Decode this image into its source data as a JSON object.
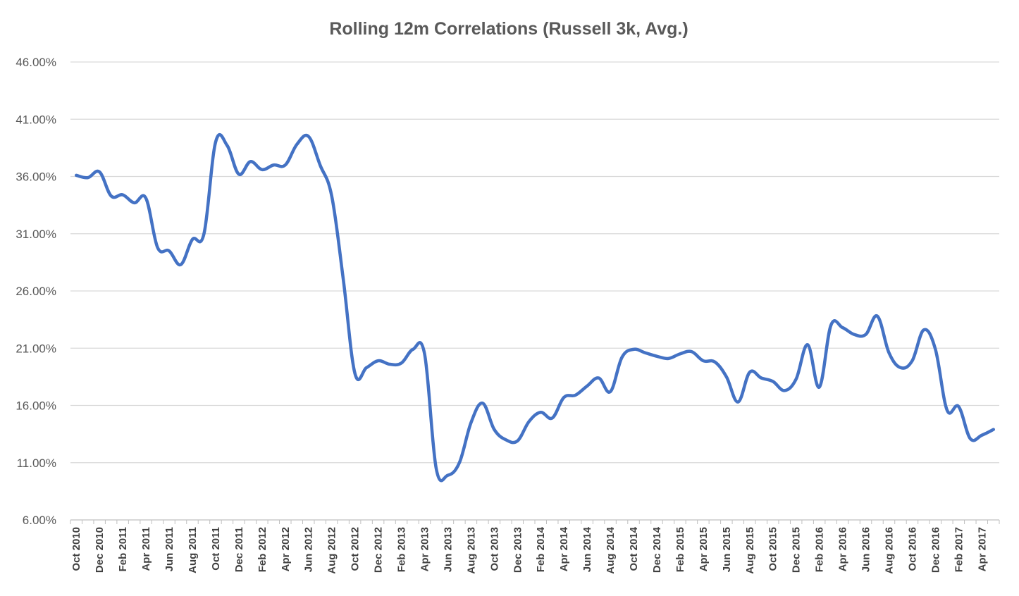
{
  "chart_data": {
    "type": "line",
    "title": "Rolling 12m Correlations (Russell 3k, Avg.)",
    "xlabel": "",
    "ylabel": "",
    "ylim": [
      6,
      46
    ],
    "yticks": [
      "6.00%",
      "11.00%",
      "16.00%",
      "21.00%",
      "26.00%",
      "31.00%",
      "36.00%",
      "41.00%",
      "46.00%"
    ],
    "grid": true,
    "legend": "none",
    "categories": [
      "Oct 2010",
      "Nov 2010",
      "Dec 2010",
      "Jan 2011",
      "Feb 2011",
      "Mar 2011",
      "Apr 2011",
      "May 2011",
      "Jun 2011",
      "Jul 2011",
      "Aug 2011",
      "Sep 2011",
      "Oct 2011",
      "Nov 2011",
      "Dec 2011",
      "Jan 2012",
      "Feb 2012",
      "Mar 2012",
      "Apr 2012",
      "May 2012",
      "Jun 2012",
      "Jul 2012",
      "Aug 2012",
      "Sep 2012",
      "Oct 2012",
      "Nov 2012",
      "Dec 2012",
      "Jan 2013",
      "Feb 2013",
      "Mar 2013",
      "Apr 2013",
      "May 2013",
      "Jun 2013",
      "Jul 2013",
      "Aug 2013",
      "Sep 2013",
      "Oct 2013",
      "Nov 2013",
      "Dec 2013",
      "Jan 2014",
      "Feb 2014",
      "Mar 2014",
      "Apr 2014",
      "May 2014",
      "Jun 2014",
      "Jul 2014",
      "Aug 2014",
      "Sep 2014",
      "Oct 2014",
      "Nov 2014",
      "Dec 2014",
      "Jan 2015",
      "Feb 2015",
      "Mar 2015",
      "Apr 2015",
      "May 2015",
      "Jun 2015",
      "Jul 2015",
      "Aug 2015",
      "Sep 2015",
      "Oct 2015",
      "Nov 2015",
      "Dec 2015",
      "Jan 2016",
      "Feb 2016",
      "Mar 2016",
      "Apr 2016",
      "May 2016",
      "Jun 2016",
      "Jul 2016",
      "Aug 2016",
      "Sep 2016",
      "Oct 2016",
      "Nov 2016",
      "Dec 2016",
      "Jan 2017",
      "Feb 2017",
      "Mar 2017",
      "Apr 2017",
      "May 2017"
    ],
    "tick_labels": [
      "Oct 2010",
      "Dec 2010",
      "Feb 2011",
      "Apr 2011",
      "Jun 2011",
      "Aug 2011",
      "Oct 2011",
      "Dec 2011",
      "Feb 2012",
      "Apr 2012",
      "Jun 2012",
      "Aug 2012",
      "Oct 2012",
      "Dec 2012",
      "Feb 2013",
      "Apr 2013",
      "Jun 2013",
      "Aug 2013",
      "Oct 2013",
      "Dec 2013",
      "Feb 2014",
      "Apr 2014",
      "Jun 2014",
      "Aug 2014",
      "Oct 2014",
      "Dec 2014",
      "Feb 2015",
      "Apr 2015",
      "Jun 2015",
      "Aug 2015",
      "Oct 2015",
      "Dec 2015",
      "Feb 2016",
      "Apr 2016",
      "Jun 2016",
      "Aug 2016",
      "Oct 2016",
      "Dec 2016",
      "Feb 2017",
      "Apr 2017"
    ],
    "series": [
      {
        "color": "#4472c4",
        "values": [
          36.1,
          35.9,
          36.4,
          34.3,
          34.4,
          33.7,
          34.1,
          29.8,
          29.5,
          28.3,
          30.5,
          31.0,
          39.0,
          38.7,
          36.2,
          37.3,
          36.6,
          37.0,
          37.0,
          38.8,
          39.5,
          37.0,
          34.3,
          27.0,
          18.8,
          19.3,
          19.9,
          19.6,
          19.7,
          20.9,
          20.5,
          10.5,
          9.9,
          11.0,
          14.5,
          16.2,
          13.9,
          13.0,
          12.9,
          14.6,
          15.4,
          14.9,
          16.7,
          16.9,
          17.7,
          18.4,
          17.2,
          20.2,
          20.9,
          20.6,
          20.3,
          20.1,
          20.5,
          20.7,
          19.9,
          19.8,
          18.5,
          16.3,
          18.9,
          18.4,
          18.1,
          17.3,
          18.3,
          21.3,
          17.6,
          23.0,
          22.8,
          22.2,
          22.2,
          23.8,
          20.6,
          19.3,
          19.9,
          22.6,
          20.9,
          15.6,
          15.9,
          13.1,
          13.4,
          13.9
        ]
      }
    ]
  }
}
